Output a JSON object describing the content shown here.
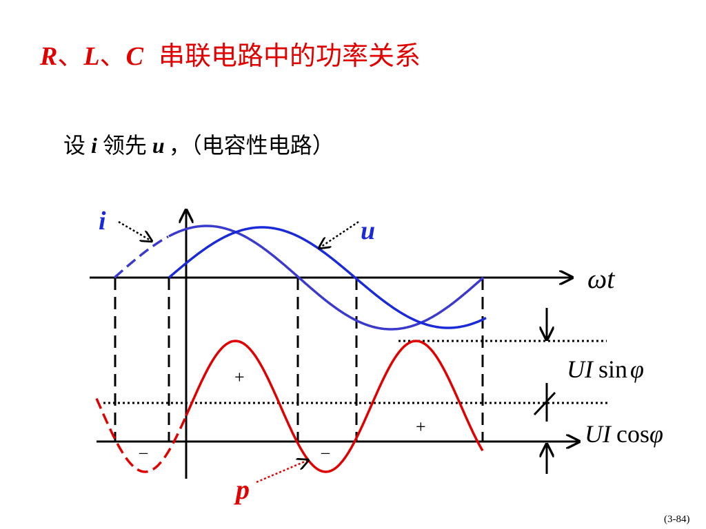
{
  "title": {
    "parts": [
      "R",
      "、",
      "L",
      "、",
      "C",
      "串联电路中的功率关系"
    ]
  },
  "subtitle": {
    "parts": [
      "设",
      "i",
      "领先",
      "u",
      "，（电容性电路）"
    ]
  },
  "labels": {
    "i": "i",
    "u": "u",
    "omega_t": "ωt",
    "p": "p",
    "plus": [
      "+",
      "+"
    ],
    "minus": [
      "–",
      "–"
    ],
    "ui_sin": [
      "UI",
      "sin",
      "φ"
    ],
    "ui_cos": [
      "UI",
      "cos",
      "φ"
    ]
  },
  "page_number": "(3-84)"
}
